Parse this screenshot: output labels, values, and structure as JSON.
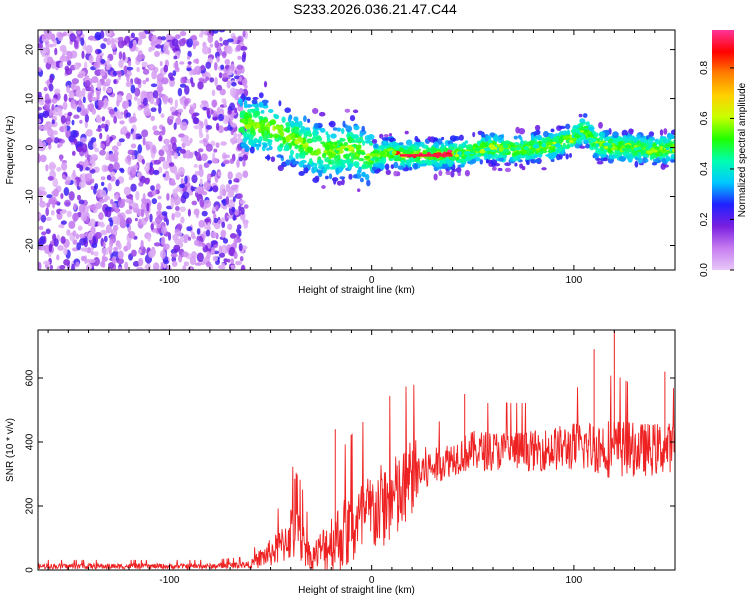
{
  "title": "S233.2026.036.21.47.C44",
  "chart_data": [
    {
      "type": "heatmap",
      "title": "S233.2026.036.21.47.C44",
      "xlabel": "Height of straight line (km)",
      "ylabel": "Frequency (Hz)",
      "xlim": [
        -165,
        150
      ],
      "ylim": [
        -25,
        24
      ],
      "x_ticks": [
        -100,
        0,
        100
      ],
      "y_ticks": [
        -20,
        -10,
        0,
        10,
        20
      ],
      "colorbar": {
        "label": "Normalized spectral amplitude",
        "range": [
          0,
          0.95
        ],
        "ticks": [
          0.0,
          0.2,
          0.4,
          0.6,
          0.8
        ],
        "colormap": [
          "#e8c8f8",
          "#c77df0",
          "#7b1fe0",
          "#2020ff",
          "#00c8ff",
          "#00ffb0",
          "#20ff00",
          "#c8ff00",
          "#ffd000",
          "#ff8000",
          "#ff0000",
          "#ff3399"
        ]
      },
      "ridge": {
        "x": [
          -65,
          -50,
          -40,
          -30,
          -20,
          -10,
          0,
          10,
          15,
          30,
          45,
          50,
          60,
          70,
          80,
          90,
          100,
          105,
          110,
          120,
          130,
          140,
          150
        ],
        "y": [
          5,
          4,
          2,
          0,
          -1,
          0,
          -2,
          -1,
          -1.5,
          -1.5,
          -1.2,
          -0.5,
          0,
          -0.5,
          0,
          0.5,
          2,
          4,
          1,
          0,
          0,
          -0.5,
          0
        ]
      },
      "noise_region_x": [
        -165,
        -62
      ]
    },
    {
      "type": "line",
      "xlabel": "Height of straight line (km)",
      "ylabel": "SNR (10 * v/v)",
      "xlim": [
        -165,
        150
      ],
      "ylim": [
        0,
        750
      ],
      "x_ticks": [
        -100,
        0,
        100
      ],
      "y_ticks": [
        0,
        200,
        400,
        600
      ],
      "color": "#ee2222",
      "envelope": {
        "x": [
          -165,
          -120,
          -80,
          -60,
          -55,
          -45,
          -40,
          -35,
          -30,
          -20,
          -10,
          0,
          10,
          15,
          20,
          25,
          30,
          40,
          50,
          60,
          80,
          100,
          110,
          120,
          130,
          140,
          150
        ],
        "baseline": [
          10,
          10,
          10,
          15,
          30,
          60,
          100,
          80,
          30,
          70,
          100,
          150,
          190,
          200,
          270,
          290,
          310,
          340,
          360,
          360,
          360,
          370,
          370,
          360,
          360,
          360,
          370
        ],
        "amplitude": [
          12,
          12,
          12,
          15,
          45,
          80,
          130,
          110,
          50,
          140,
          180,
          190,
          200,
          200,
          180,
          120,
          80,
          80,
          90,
          90,
          90,
          110,
          120,
          140,
          120,
          120,
          110
        ]
      },
      "peaks": [
        {
          "x": -38,
          "y": 285
        },
        {
          "x": -18,
          "y": 440
        },
        {
          "x": 17,
          "y": 555
        },
        {
          "x": 46,
          "y": 550
        },
        {
          "x": 110,
          "y": 690
        },
        {
          "x": 120,
          "y": 760
        },
        {
          "x": 145,
          "y": 620
        }
      ]
    }
  ]
}
